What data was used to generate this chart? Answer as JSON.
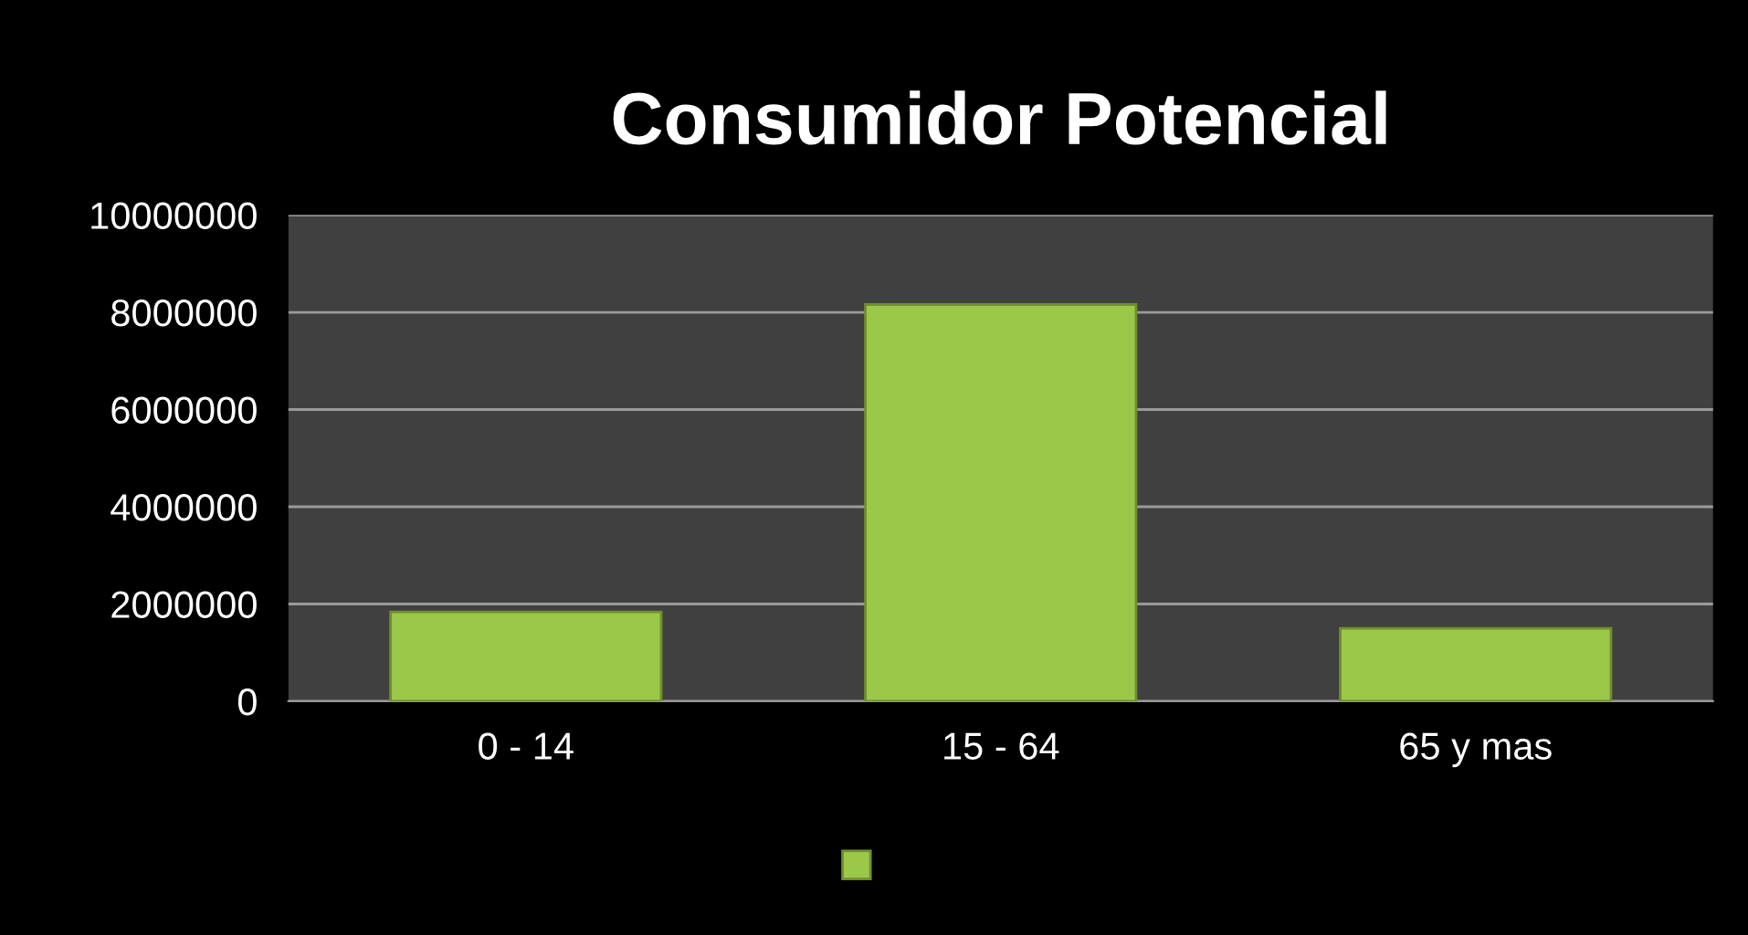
{
  "chart_data": {
    "type": "bar",
    "title": "Consumidor Potencial",
    "categories": [
      "0 - 14",
      "15 - 64",
      "65 y mas"
    ],
    "series": [
      {
        "color": "#9bc848",
        "values": [
          1840000,
          8160000,
          1500000
        ]
      }
    ],
    "ylim": [
      0,
      10000000
    ],
    "yticks": [
      0,
      2000000,
      4000000,
      6000000,
      8000000,
      10000000
    ],
    "grid": "y"
  }
}
